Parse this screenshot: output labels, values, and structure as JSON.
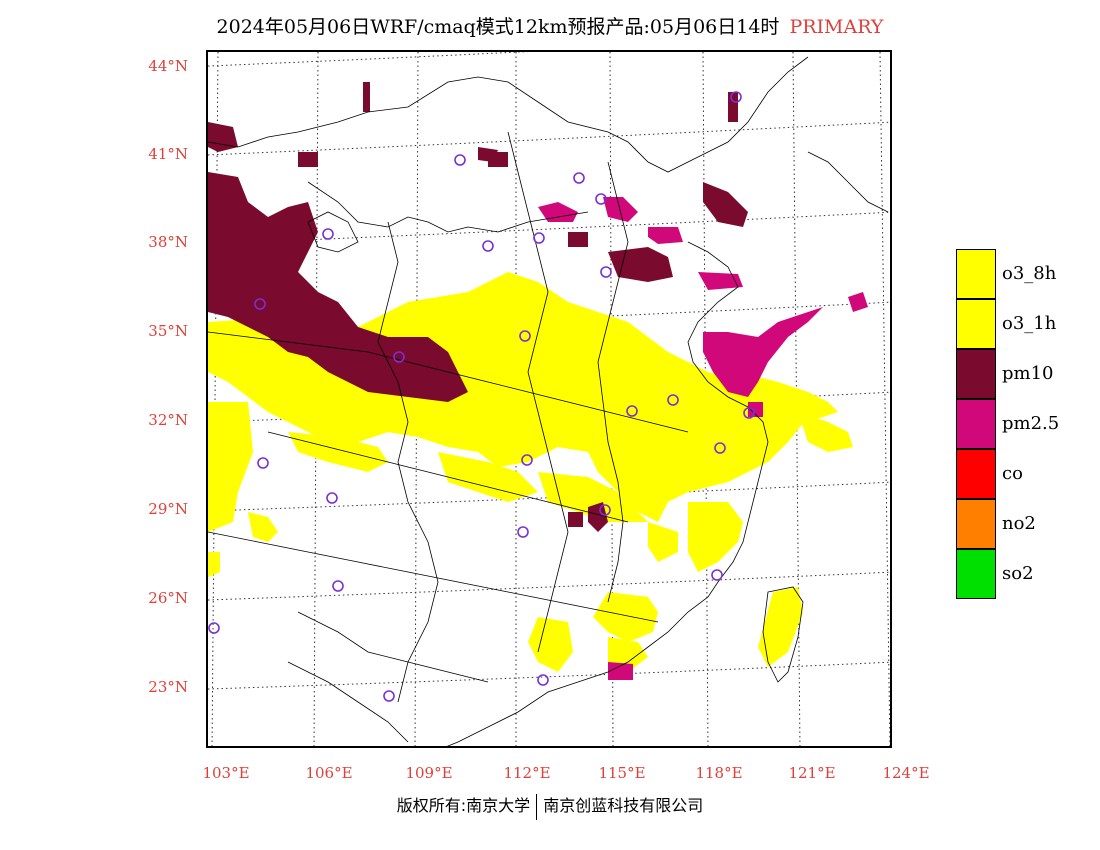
{
  "title": {
    "text": "2024年05月06日WRF/cmaq模式12km预报产品:05月06日14时",
    "tag": "PRIMARY"
  },
  "axes": {
    "lat_labels": [
      "44°N",
      "41°N",
      "38°N",
      "35°N",
      "32°N",
      "29°N",
      "26°N",
      "23°N"
    ],
    "lon_labels": [
      "103°E",
      "106°E",
      "109°E",
      "112°E",
      "115°E",
      "118°E",
      "121°E",
      "124°E"
    ]
  },
  "legend": [
    {
      "label": "o3_8h",
      "color": "#ffff00"
    },
    {
      "label": "o3_1h",
      "color": "#ffff00"
    },
    {
      "label": "pm10",
      "color": "#7a0a2e"
    },
    {
      "label": "pm2.5",
      "color": "#d0087a"
    },
    {
      "label": "co",
      "color": "#ff0000"
    },
    {
      "label": "no2",
      "color": "#ff7f00"
    },
    {
      "label": "so2",
      "color": "#00e000"
    }
  ],
  "footer": {
    "left": "版权所有:南京大学",
    "right": "南京创蓝科技有限公司"
  },
  "colors": {
    "tick_label": "#e0403a",
    "o3": "#ffff00",
    "pm10": "#7a0a2e",
    "pm25": "#d0087a",
    "station_circle": "#7b2fd6"
  }
}
